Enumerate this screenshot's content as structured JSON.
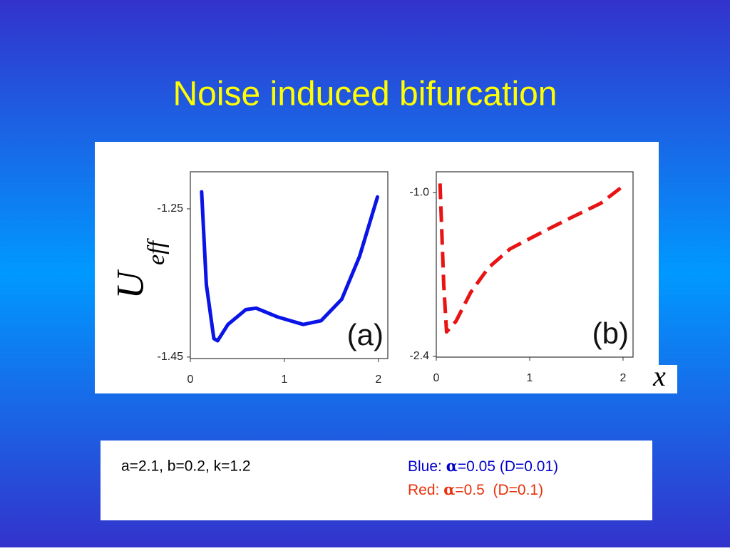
{
  "title": "Noise induced bifurcation",
  "chart_data": [
    {
      "type": "line",
      "panel_label": "(a)",
      "ylabel": "U",
      "ylabel_sub": "eff",
      "color": "#0a14e6",
      "dashed": false,
      "x": [
        0.12,
        0.17,
        0.25,
        0.29,
        0.4,
        0.59,
        0.7,
        0.93,
        1.2,
        1.39,
        1.61,
        1.8,
        1.99
      ],
      "values": [
        -1.227,
        -1.352,
        -1.425,
        -1.428,
        -1.406,
        -1.386,
        -1.384,
        -1.396,
        -1.406,
        -1.401,
        -1.372,
        -1.314,
        -1.234
      ],
      "xlim": [
        0,
        2.1
      ],
      "xticks": [
        0,
        1,
        2
      ],
      "ylim": [
        -1.452,
        -1.2
      ],
      "yticks": [
        -1.25,
        -1.45
      ]
    },
    {
      "type": "line",
      "panel_label": "(b)",
      "xlabel": "x",
      "color": "#e81414",
      "dashed": true,
      "x": [
        0.04,
        0.08,
        0.11,
        0.21,
        0.37,
        0.56,
        0.79,
        1.15,
        1.45,
        1.76,
        2.02
      ],
      "values": [
        -0.92,
        -1.79,
        -2.19,
        -2.1,
        -1.85,
        -1.64,
        -1.48,
        -1.33,
        -1.21,
        -1.09,
        -0.93
      ],
      "xlim": [
        0,
        2.107
      ],
      "xticks": [
        0,
        1,
        2
      ],
      "ylim": [
        -2.406,
        -0.82
      ],
      "yticks": [
        {
          "value": -1.0,
          "label": "-1.0"
        },
        -2.4
      ]
    }
  ],
  "params": {
    "text": "a=2.1, b=0.2, k=1.2",
    "blue": {
      "name": "Blue: ",
      "symbol": "α",
      "rest": "=0.05 (D=0.01)"
    },
    "red": {
      "name": "Red: ",
      "symbol": "α",
      "rest": "=0.5  (D=0.1)"
    }
  }
}
